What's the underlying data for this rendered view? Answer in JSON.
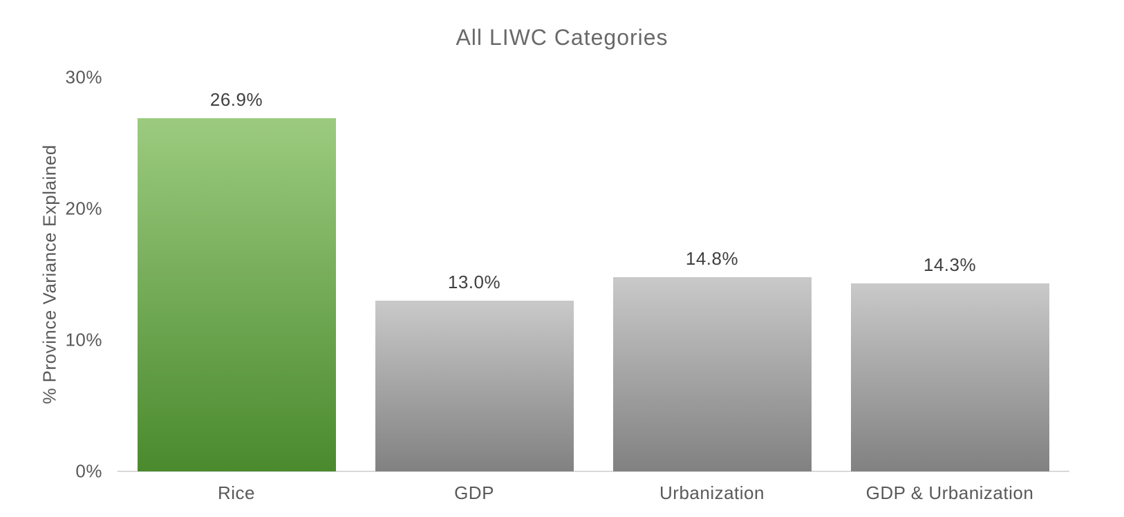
{
  "chart_data": {
    "type": "bar",
    "title": "All LIWC Categories",
    "xlabel": "",
    "ylabel": "% Province Variance Explained",
    "categories": [
      "Rice",
      "GDP",
      "Urbanization",
      "GDP & Urbanization"
    ],
    "values": [
      26.9,
      13.0,
      14.8,
      14.3
    ],
    "data_labels": [
      "26.9%",
      "13.0%",
      "14.8%",
      "14.3%"
    ],
    "ylim": [
      0,
      30
    ],
    "yticks": [
      0,
      10,
      20,
      30
    ],
    "ytick_labels": [
      "0%",
      "10%",
      "20%",
      "30%"
    ],
    "grid": false,
    "legend": false,
    "highlight_index": 0,
    "colors": {
      "highlight_gradient_top": "#9ccb7f",
      "highlight_gradient_bottom": "#4a8a2d",
      "default_gradient_top": "#c9c9c9",
      "default_gradient_bottom": "#818181",
      "title_text": "#696969",
      "axis_text": "#595959",
      "data_label_text": "#3f3f3f",
      "axis_line": "#d9d9d9",
      "background": "#ffffff"
    }
  }
}
